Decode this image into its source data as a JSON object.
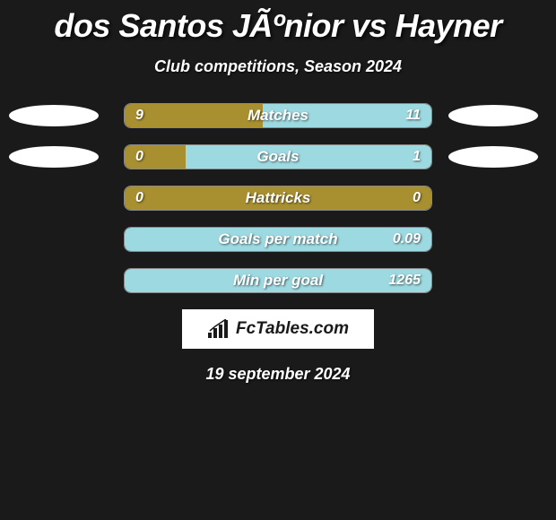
{
  "title": "dos Santos JÃºnior vs Hayner",
  "subtitle": "Club competitions, Season 2024",
  "date": "19 september 2024",
  "brand": "FcTables.com",
  "colors": {
    "olive": "#a89030",
    "lightblue": "#9dd9e0",
    "background": "#1a1a1a",
    "ellipse": "#ffffff"
  },
  "stats": [
    {
      "label": "Matches",
      "left_value": "9",
      "right_value": "11",
      "left_pct": 45,
      "right_pct": 55,
      "left_color": "#a89030",
      "right_color": "#9dd9e0",
      "show_ellipses": true
    },
    {
      "label": "Goals",
      "left_value": "0",
      "right_value": "1",
      "left_pct": 20,
      "right_pct": 80,
      "left_color": "#a89030",
      "right_color": "#9dd9e0",
      "show_ellipses": true
    },
    {
      "label": "Hattricks",
      "left_value": "0",
      "right_value": "0",
      "left_pct": 100,
      "right_pct": 0,
      "left_color": "#a89030",
      "right_color": "#9dd9e0",
      "show_ellipses": false
    },
    {
      "label": "Goals per match",
      "left_value": "",
      "right_value": "0.09",
      "left_pct": 0,
      "right_pct": 100,
      "left_color": "#a89030",
      "right_color": "#9dd9e0",
      "show_ellipses": false
    },
    {
      "label": "Min per goal",
      "left_value": "",
      "right_value": "1265",
      "left_pct": 0,
      "right_pct": 100,
      "left_color": "#a89030",
      "right_color": "#9dd9e0",
      "show_ellipses": false
    }
  ]
}
